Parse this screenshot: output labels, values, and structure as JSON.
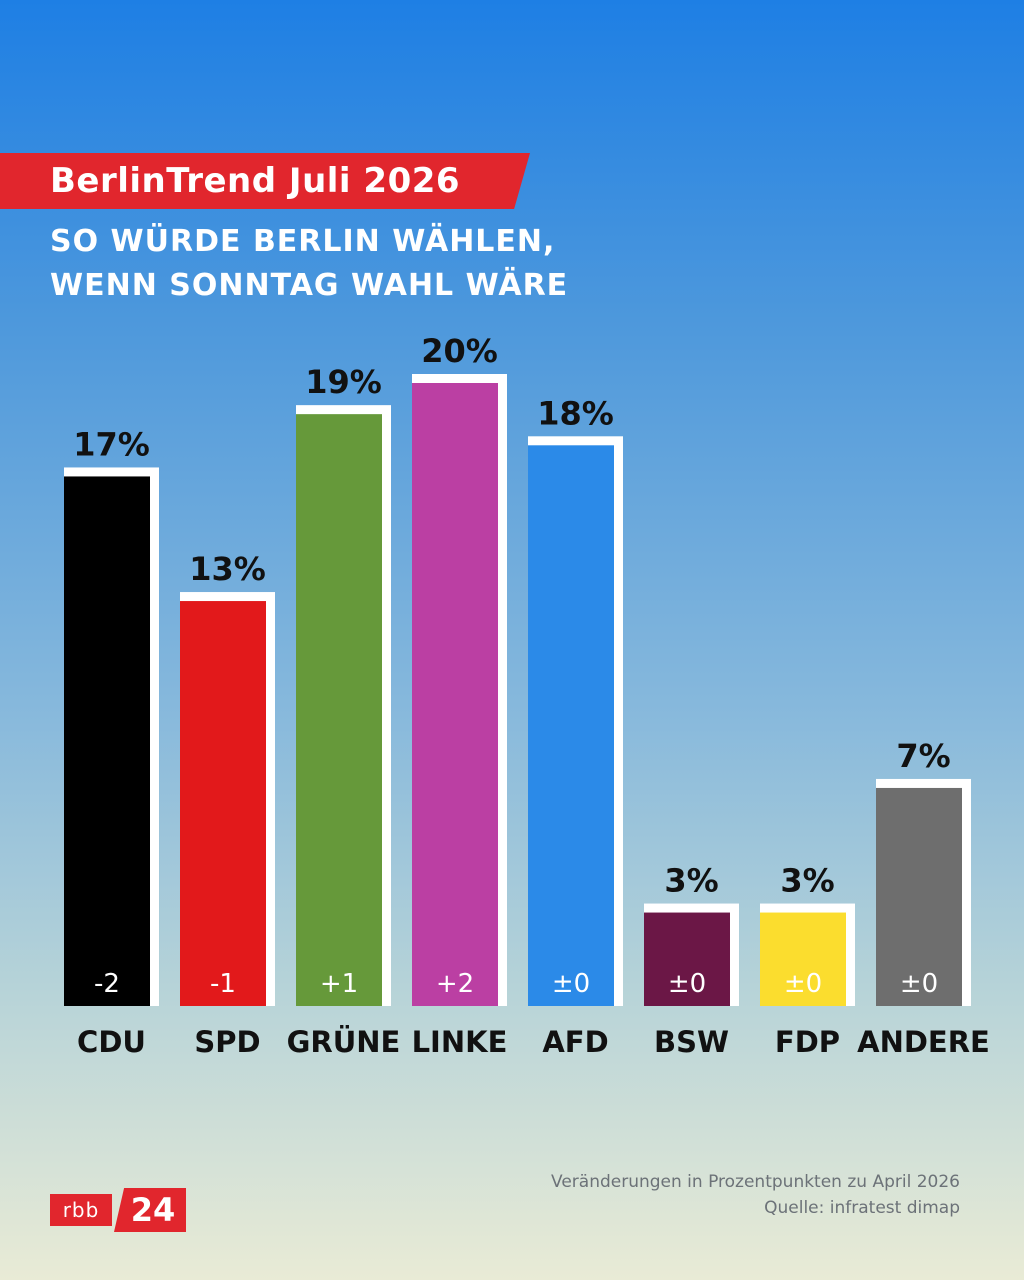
{
  "header": {
    "title": "BerlinTrend Juli 2026",
    "subtitle_line1": "SO WÜRDE BERLIN WÄHLEN,",
    "subtitle_line2": "WENN SONNTAG WAHL WÄRE"
  },
  "chart_data": {
    "type": "bar",
    "categories": [
      "CDU",
      "SPD",
      "GRÜNE",
      "LINKE",
      "AFD",
      "BSW",
      "FDP",
      "ANDERE"
    ],
    "values": [
      17,
      13,
      19,
      20,
      18,
      3,
      3,
      7
    ],
    "value_labels": [
      "17%",
      "13%",
      "19%",
      "20%",
      "18%",
      "3%",
      "3%",
      "7%"
    ],
    "changes": [
      "-2",
      "-1",
      "+1",
      "+2",
      "±0",
      "±0",
      "±0",
      "±0"
    ],
    "colors": [
      "#000000",
      "#e2191b",
      "#66993a",
      "#bb3fa3",
      "#2b8ae8",
      "#6b1746",
      "#fbdd2e",
      "#6e6e6e"
    ],
    "ylim": [
      0,
      20
    ],
    "grid": false,
    "legend": "none",
    "title": "",
    "xlabel": "",
    "ylabel": ""
  },
  "footer": {
    "note": "Veränderungen in Prozentpunkten zu April 2026",
    "source": "Quelle: infratest dimap",
    "logo_left": "rbb",
    "logo_right": "24"
  }
}
